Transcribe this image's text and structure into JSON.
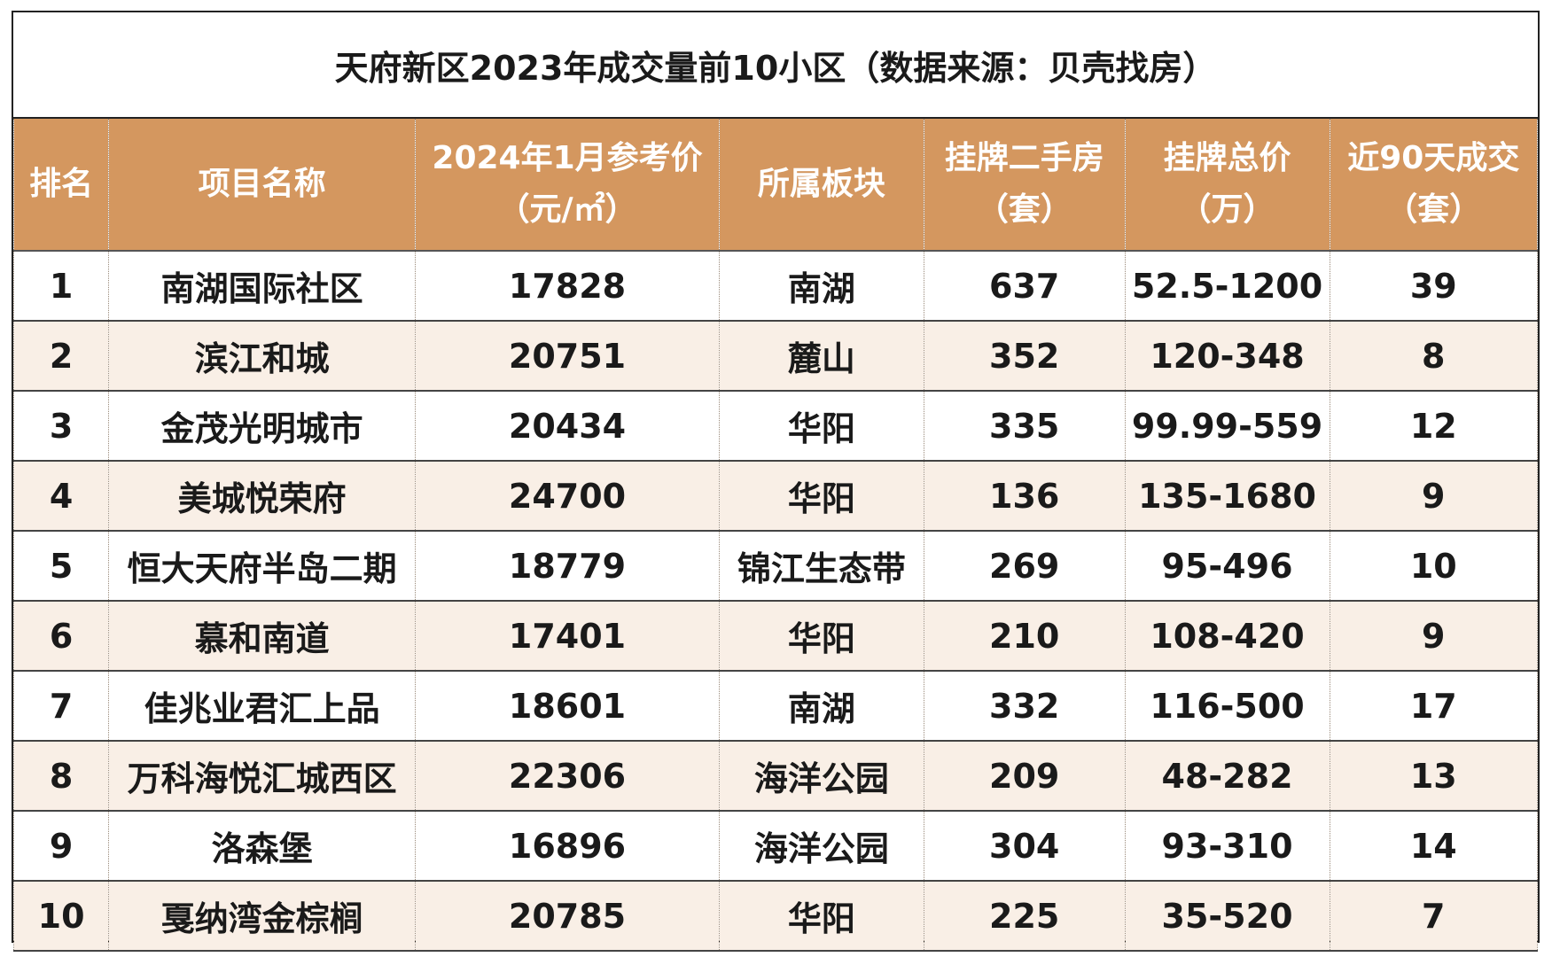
{
  "title": "天府新区2023年成交量前10小区（数据来源：贝壳找房）",
  "headers": [
    {
      "line1": "排名",
      "line2": ""
    },
    {
      "line1": "项目名称",
      "line2": ""
    },
    {
      "line1": "2024年1月参考价",
      "line2": "（元/㎡）"
    },
    {
      "line1": "所属板块",
      "line2": ""
    },
    {
      "line1": "挂牌二手房",
      "line2": "（套）"
    },
    {
      "line1": "挂牌总价",
      "line2": "（万）"
    },
    {
      "line1": "近90天成交",
      "line2": "（套）"
    }
  ],
  "rows": [
    [
      "1",
      "南湖国际社区",
      "17828",
      "南湖",
      "637",
      "52.5-1200",
      "39"
    ],
    [
      "2",
      "滨江和城",
      "20751",
      "麓山",
      "352",
      "120-348",
      "8"
    ],
    [
      "3",
      "金茂光明城市",
      "20434",
      "华阳",
      "335",
      "99.99-559",
      "12"
    ],
    [
      "4",
      "美城悦荣府",
      "24700",
      "华阳",
      "136",
      "135-1680",
      "9"
    ],
    [
      "5",
      "恒大天府半岛二期",
      "18779",
      "锦江生态带",
      "269",
      "95-496",
      "10"
    ],
    [
      "6",
      "慕和南道",
      "17401",
      "华阳",
      "210",
      "108-420",
      "9"
    ],
    [
      "7",
      "佳兆业君汇上品",
      "18601",
      "南湖",
      "332",
      "116-500",
      "17"
    ],
    [
      "8",
      "万科海悦汇城西区",
      "22306",
      "海洋公园",
      "209",
      "48-282",
      "13"
    ],
    [
      "9",
      "洛森堡",
      "16896",
      "海洋公园",
      "304",
      "93-310",
      "14"
    ],
    [
      "10",
      "戛纳湾金棕榈",
      "20785",
      "华阳",
      "225",
      "35-520",
      "7"
    ]
  ]
}
